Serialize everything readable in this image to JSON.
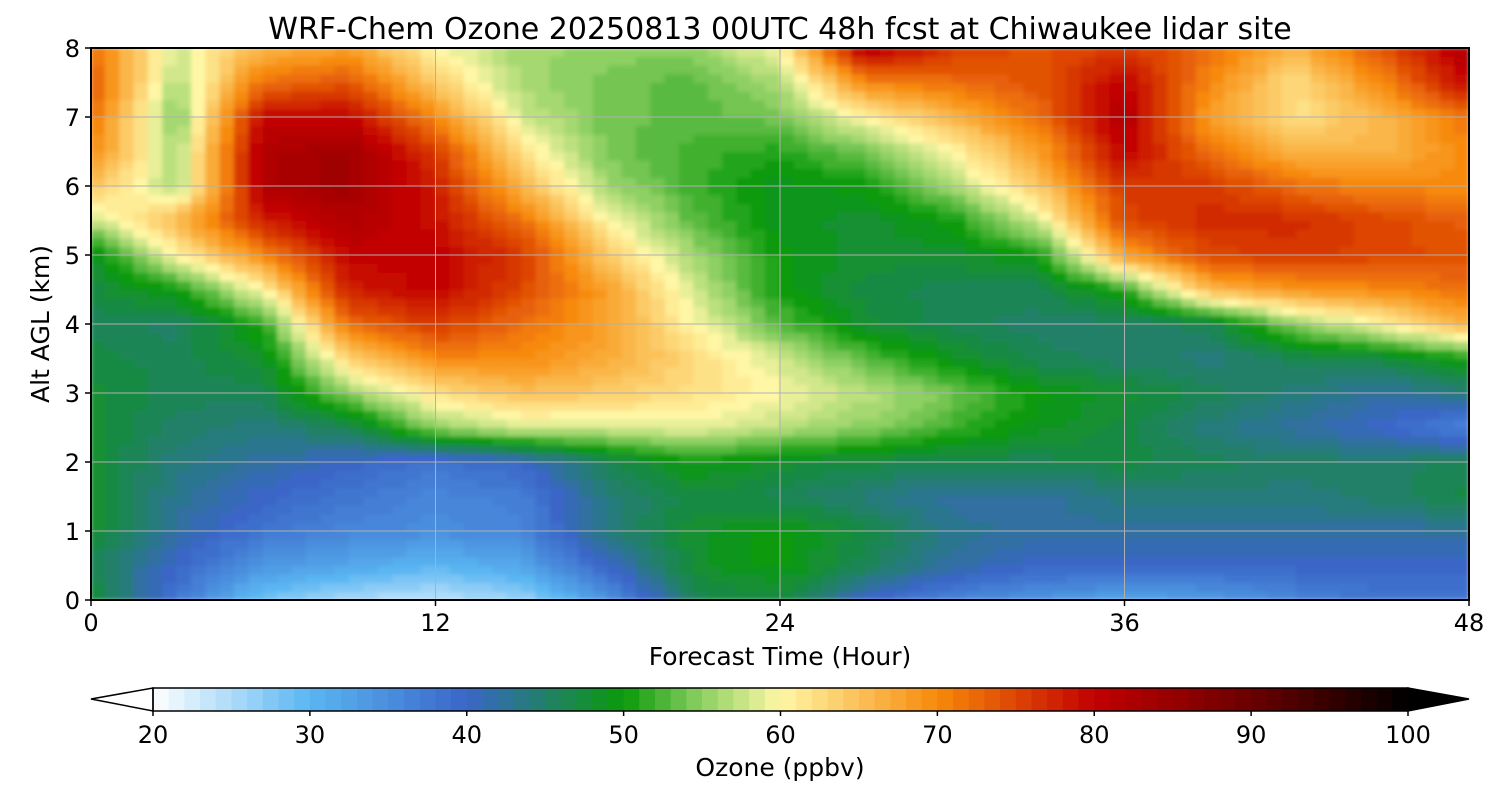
{
  "chart_data": {
    "type": "heatmap",
    "title": "WRF-Chem Ozone  20250813 00UTC 48h fcst at Chiwaukee lidar site",
    "xlabel": "Forecast Time (Hour)",
    "ylabel": "Alt AGL (km)",
    "xlim": [
      0,
      48
    ],
    "ylim": [
      0,
      8
    ],
    "xticks": [
      0,
      12,
      24,
      36,
      48
    ],
    "xtick_labels": [
      "0",
      "12",
      "24",
      "36",
      "48"
    ],
    "yticks": [
      0,
      1,
      2,
      3,
      4,
      5,
      6,
      7,
      8
    ],
    "ytick_labels": [
      "0",
      "1",
      "2",
      "3",
      "4",
      "5",
      "6",
      "7",
      "8"
    ],
    "grid": true,
    "colorbar": {
      "label": "Ozone  (ppbv)",
      "min": 20,
      "max": 100,
      "extend": "both",
      "ticks": [
        20,
        30,
        40,
        50,
        60,
        70,
        80,
        90,
        100
      ],
      "tick_labels": [
        "20",
        "30",
        "40",
        "50",
        "60",
        "70",
        "80",
        "90",
        "100"
      ],
      "colors": {
        "20": "#ffffff",
        "30": "#5ab6f2",
        "40": "#3a66c8",
        "50": "#0a9a0a",
        "55": "#8ed064",
        "60": "#fff7a6",
        "70": "#f78a0a",
        "80": "#c20000",
        "90": "#6a0000",
        "100": "#000000"
      }
    },
    "times": [
      0,
      3,
      6,
      9,
      12,
      15,
      18,
      21,
      24,
      27,
      30,
      33,
      36,
      39,
      42,
      45,
      48
    ],
    "altitudes": [
      0,
      0.5,
      1,
      1.5,
      2,
      2.5,
      3,
      3.5,
      4,
      4.5,
      5,
      5.5,
      6,
      6.5,
      7,
      7.5,
      8
    ],
    "ozone_ppbv": [
      [
        48,
        38,
        28,
        25,
        24,
        26,
        34,
        46,
        47,
        40,
        36,
        34,
        32,
        33,
        36,
        38,
        38
      ],
      [
        46,
        40,
        34,
        32,
        30,
        32,
        40,
        48,
        50,
        46,
        42,
        40,
        40,
        40,
        40,
        40,
        40
      ],
      [
        48,
        42,
        38,
        36,
        35,
        36,
        44,
        48,
        50,
        47,
        43,
        42,
        42,
        42,
        42,
        42,
        42
      ],
      [
        48,
        43,
        40,
        38,
        36,
        37,
        44,
        47,
        46,
        44,
        42,
        42,
        44,
        44,
        44,
        45,
        47
      ],
      [
        48,
        44,
        42,
        40,
        38,
        40,
        46,
        50,
        48,
        47,
        46,
        46,
        47,
        46,
        45,
        45,
        46
      ],
      [
        48,
        45,
        44,
        46,
        55,
        58,
        58,
        59,
        57,
        55,
        52,
        49,
        47,
        44,
        42,
        40,
        36
      ],
      [
        48,
        46,
        46,
        55,
        62,
        65,
        64,
        62,
        60,
        57,
        54,
        50,
        48,
        46,
        44,
        42,
        44
      ],
      [
        47,
        46,
        48,
        63,
        70,
        70,
        67,
        63,
        58,
        53,
        49,
        46,
        45,
        44,
        46,
        47,
        50
      ],
      [
        46,
        45,
        51,
        72,
        76,
        72,
        68,
        60,
        53,
        48,
        46,
        45,
        45,
        46,
        55,
        60,
        67
      ],
      [
        47,
        50,
        60,
        78,
        80,
        75,
        68,
        58,
        50,
        47,
        46,
        46,
        51,
        66,
        69,
        70,
        72
      ],
      [
        48,
        60,
        70,
        80,
        80,
        76,
        64,
        56,
        50,
        48,
        48,
        50,
        68,
        75,
        76,
        75,
        74
      ],
      [
        57,
        66,
        78,
        82,
        79,
        72,
        60,
        53,
        49,
        48,
        50,
        58,
        75,
        77,
        77,
        75,
        73
      ],
      [
        65,
        56,
        82,
        84,
        78,
        66,
        56,
        52,
        49,
        50,
        56,
        64,
        76,
        76,
        72,
        70,
        70
      ],
      [
        70,
        56,
        82,
        84,
        76,
        62,
        54,
        52,
        51,
        54,
        60,
        68,
        80,
        72,
        66,
        66,
        70
      ],
      [
        72,
        54,
        80,
        80,
        70,
        58,
        54,
        53,
        54,
        60,
        66,
        72,
        82,
        68,
        62,
        66,
        72
      ],
      [
        74,
        56,
        72,
        74,
        64,
        56,
        54,
        53,
        56,
        70,
        72,
        74,
        80,
        70,
        62,
        70,
        80
      ],
      [
        72,
        58,
        66,
        68,
        60,
        56,
        55,
        55,
        60,
        82,
        76,
        74,
        76,
        72,
        66,
        74,
        82
      ]
    ]
  }
}
